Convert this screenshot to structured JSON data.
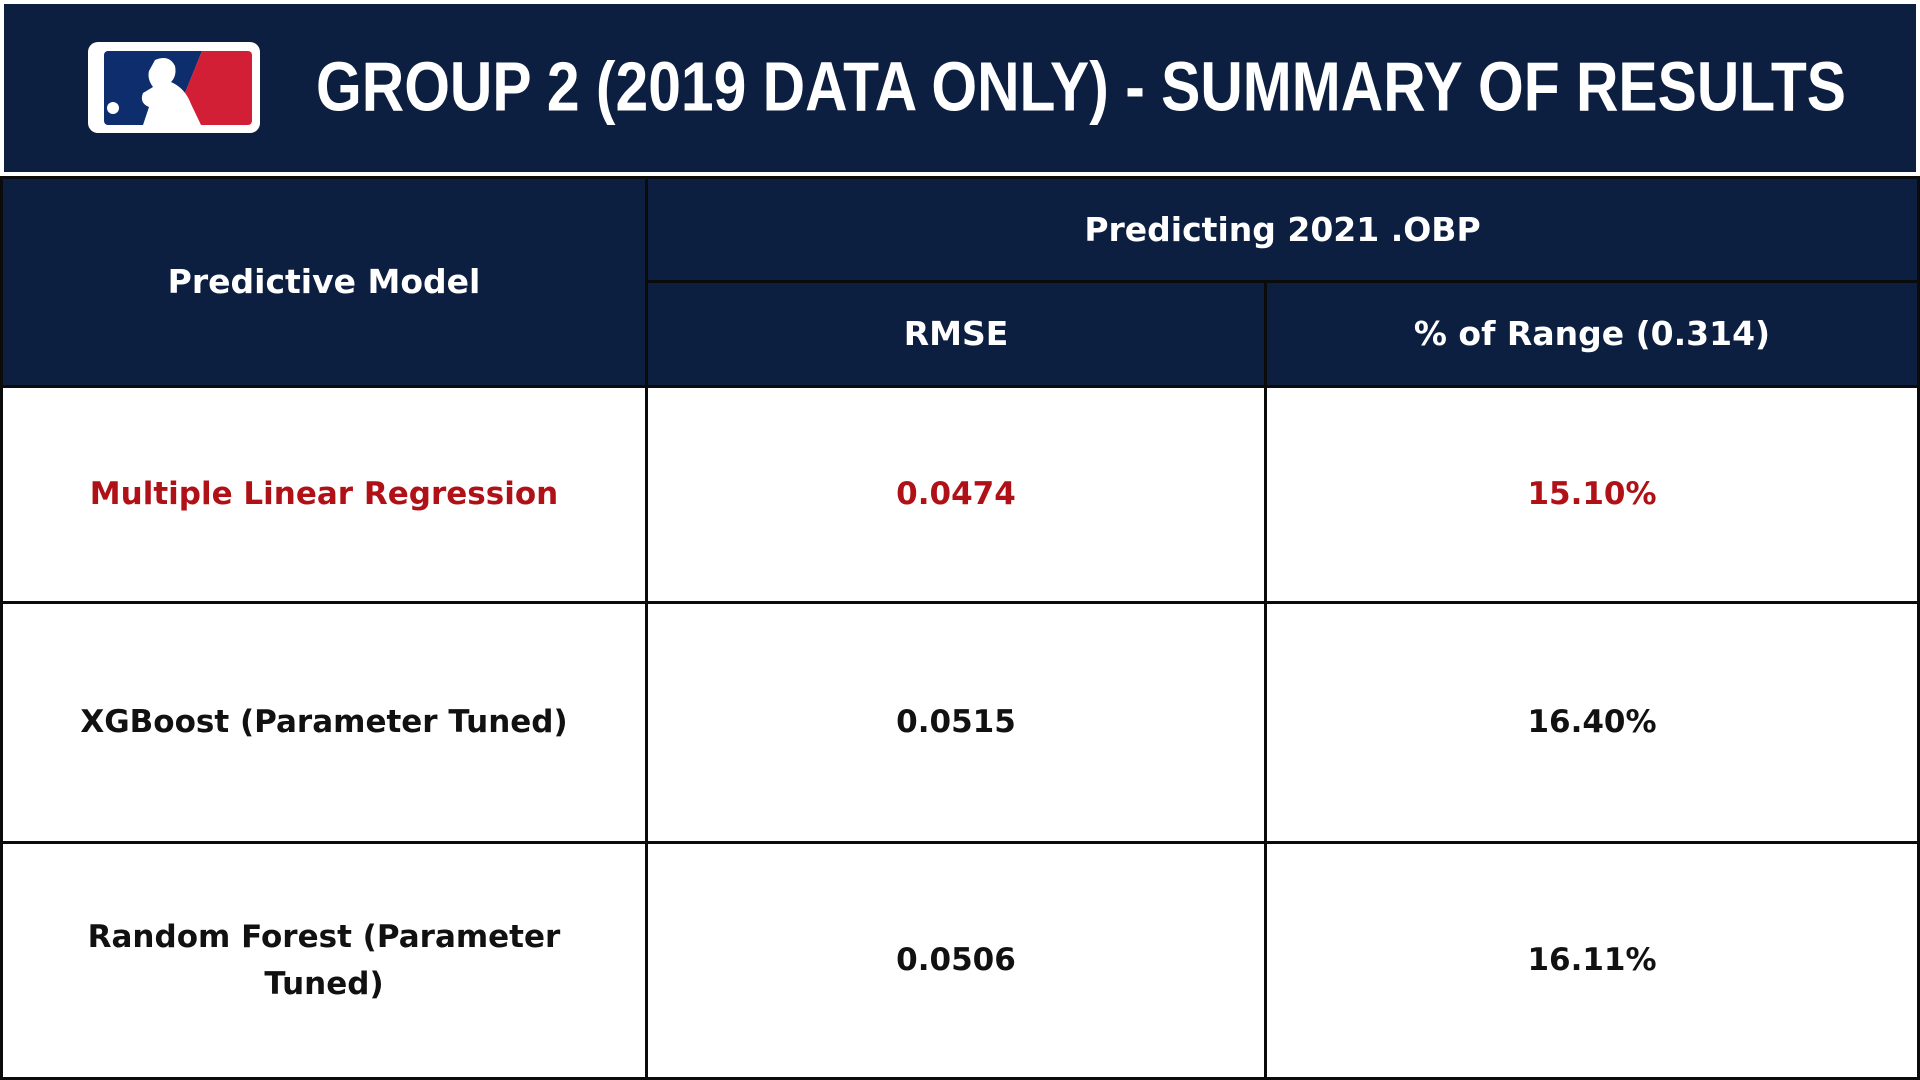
{
  "header": {
    "title": "GROUP 2 (2019 DATA ONLY) - SUMMARY OF RESULTS"
  },
  "table": {
    "header": {
      "model": "Predictive Model",
      "group": "Predicting 2021 .OBP",
      "columns": [
        "RMSE",
        "% of Range (0.314)"
      ]
    },
    "rows": [
      [
        "Multiple Linear Regression",
        "0.0474",
        "15.10%"
      ],
      [
        "XGBoost (Parameter Tuned)",
        "0.0515",
        "16.40%"
      ],
      [
        "Random Forest (Parameter Tuned)",
        "0.0506",
        "16.11%"
      ]
    ]
  }
}
